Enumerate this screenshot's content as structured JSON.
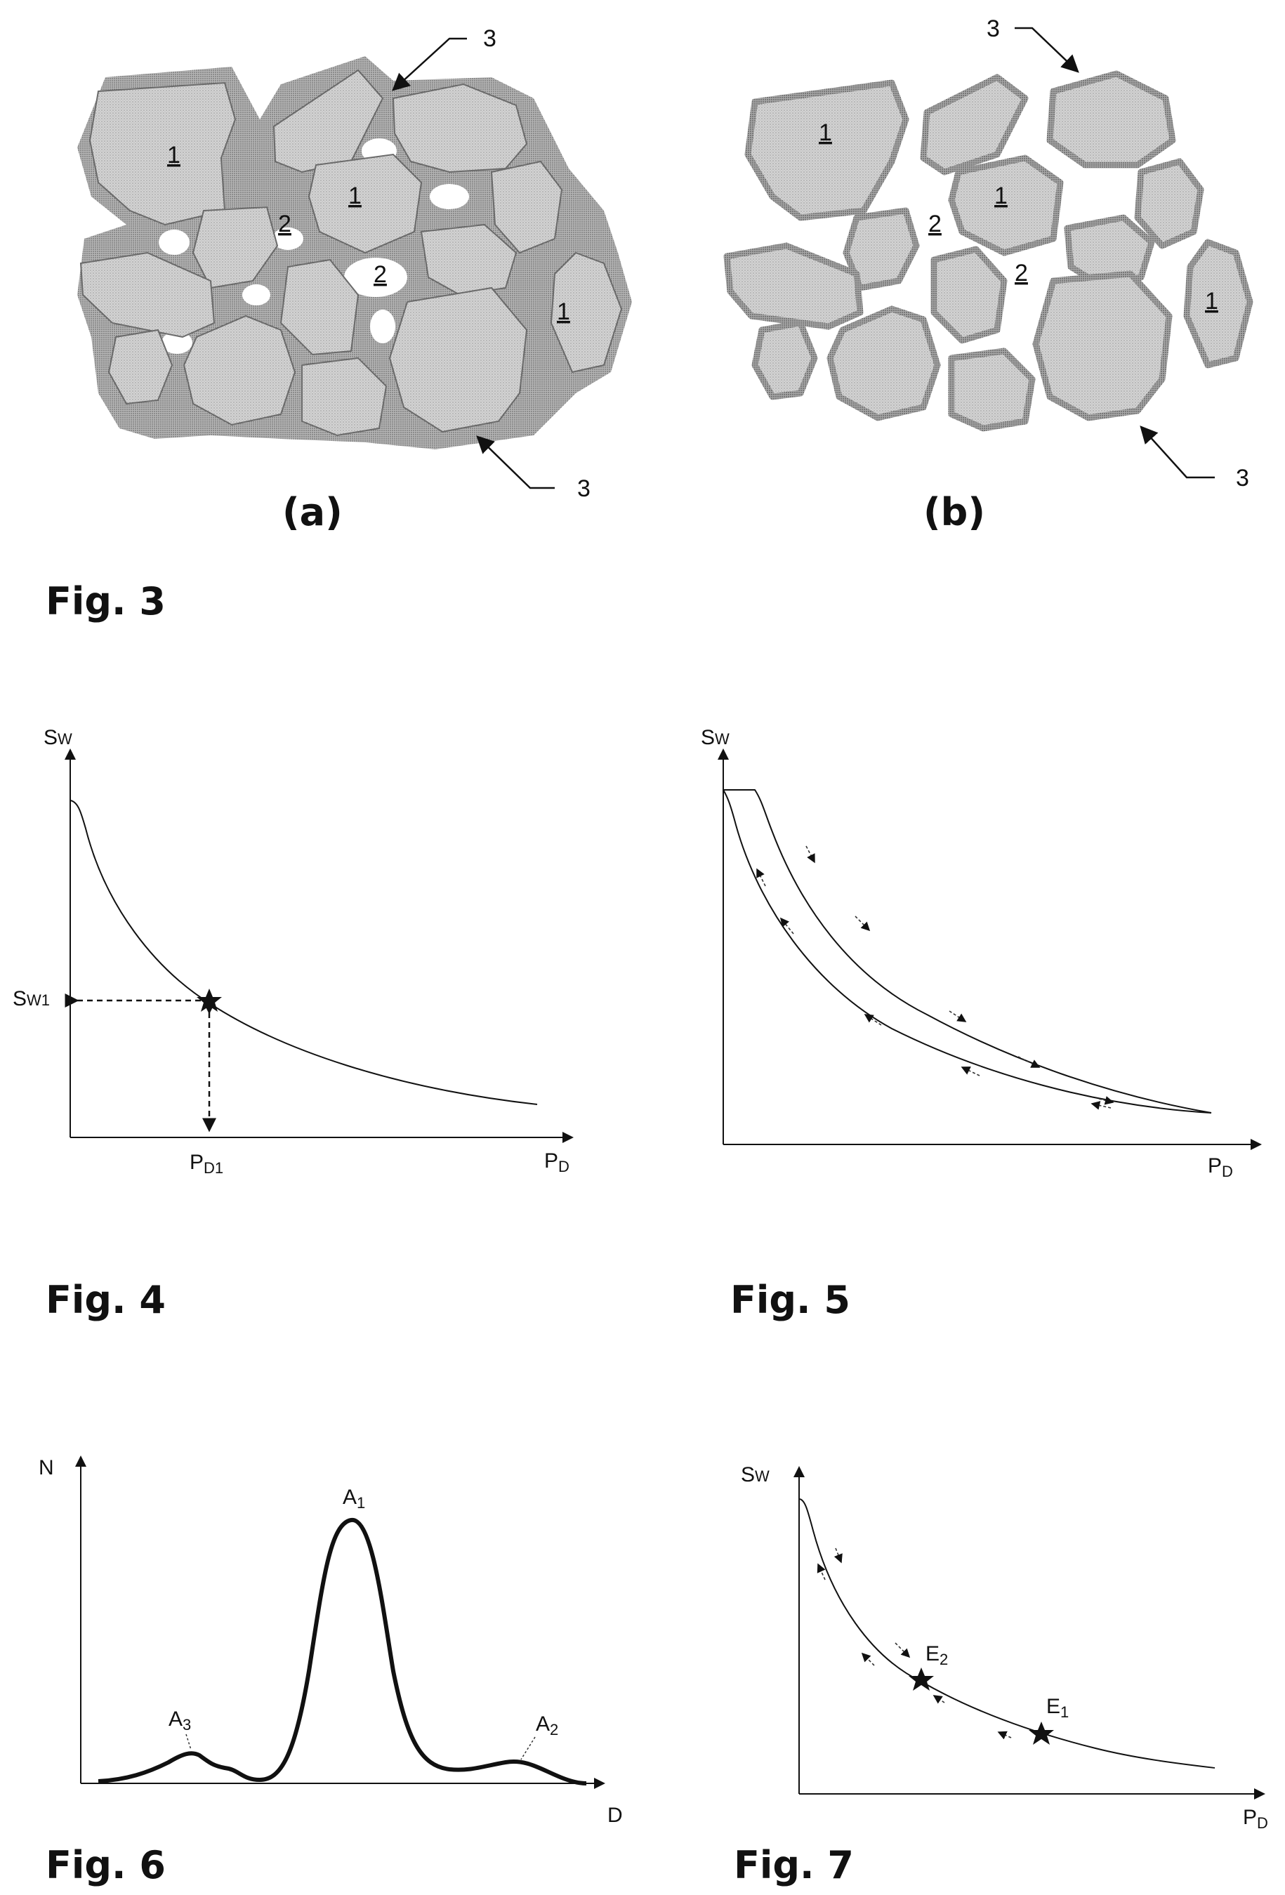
{
  "figures": {
    "fig3": {
      "caption": "Fig. 3",
      "panel_a": {
        "label": "(a)"
      },
      "panel_b": {
        "label": "(b)"
      },
      "ref_grain": "1",
      "ref_pore": "2",
      "ref_film": "3"
    },
    "fig4": {
      "caption": "Fig. 4",
      "ylabel": "S",
      "ylabel_sub": "W",
      "xlabel": "P",
      "xlabel_sub": "D",
      "y_marker": "S",
      "y_marker_sub": "W1",
      "x_marker": "P",
      "x_marker_sub": "D1"
    },
    "fig5": {
      "caption": "Fig. 5",
      "ylabel": "S",
      "ylabel_sub": "W",
      "xlabel": "P",
      "xlabel_sub": "D"
    },
    "fig6": {
      "caption": "Fig. 6",
      "ylabel": "N",
      "xlabel": "D",
      "peaks": [
        {
          "label": "A",
          "sub": "1"
        },
        {
          "label": "A",
          "sub": "2"
        },
        {
          "label": "A",
          "sub": "3"
        }
      ]
    },
    "fig7": {
      "caption": "Fig. 7",
      "ylabel": "S",
      "ylabel_sub": "W",
      "xlabel": "P",
      "xlabel_sub": "D",
      "points": [
        {
          "label": "E",
          "sub": "1"
        },
        {
          "label": "E",
          "sub": "2"
        }
      ]
    }
  },
  "colors": {
    "ink": "#111111",
    "grain": "#c9c9c9",
    "film": "#8c8c8c"
  }
}
